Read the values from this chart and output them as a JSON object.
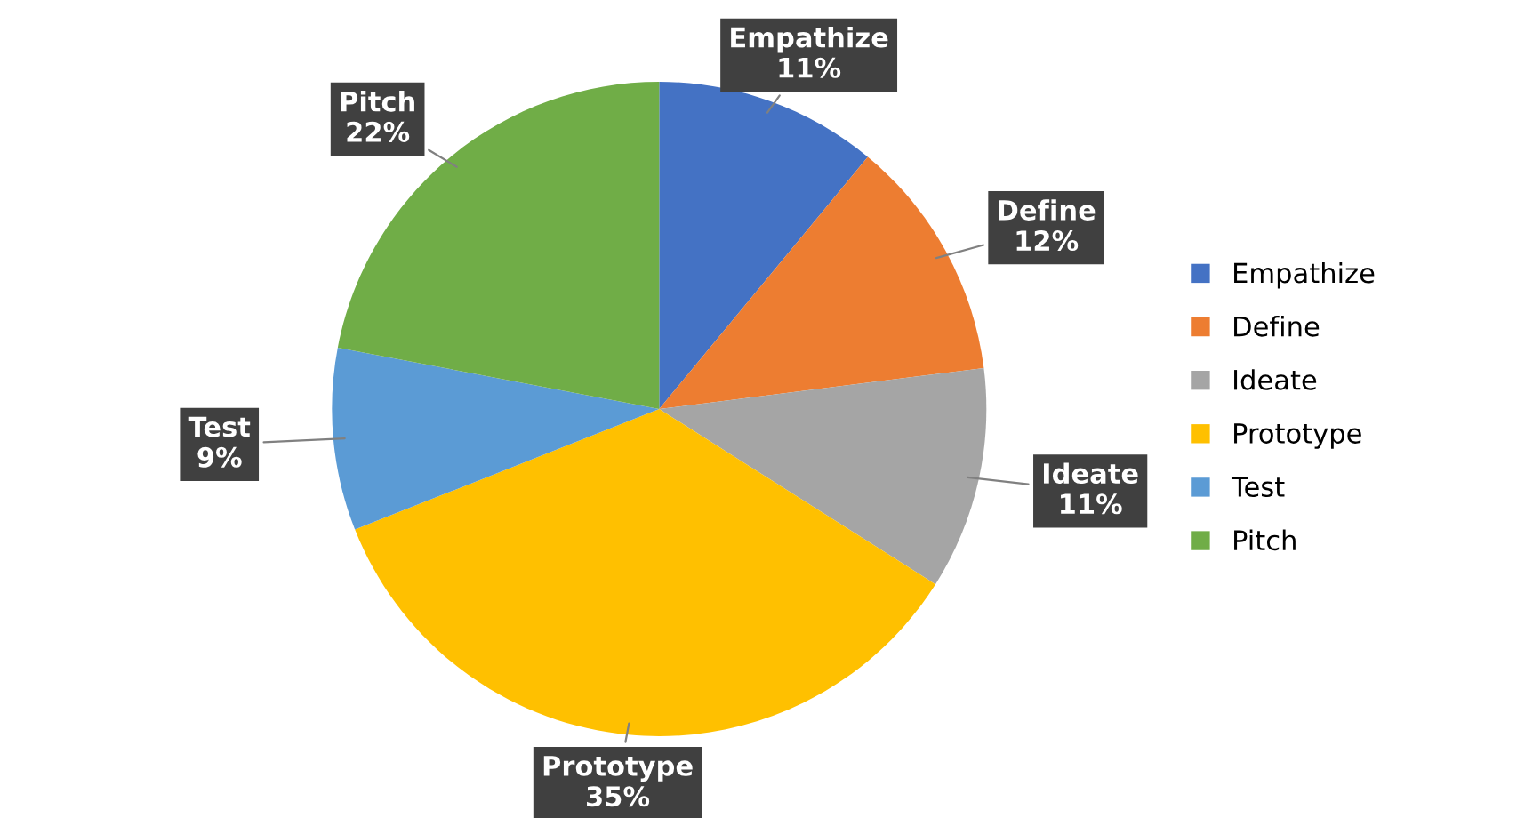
{
  "chart_data": {
    "type": "pie",
    "categories": [
      "Empathize",
      "Define",
      "Ideate",
      "Prototype",
      "Test",
      "Pitch"
    ],
    "values": [
      11,
      12,
      11,
      35,
      9,
      22
    ],
    "colors": [
      "#4472c4",
      "#ed7d31",
      "#a5a5a5",
      "#ffc000",
      "#5b9bd5",
      "#70ad47"
    ],
    "value_labels": [
      "11%",
      "12%",
      "11%",
      "35%",
      "9%",
      "22%"
    ],
    "legend": "right"
  }
}
